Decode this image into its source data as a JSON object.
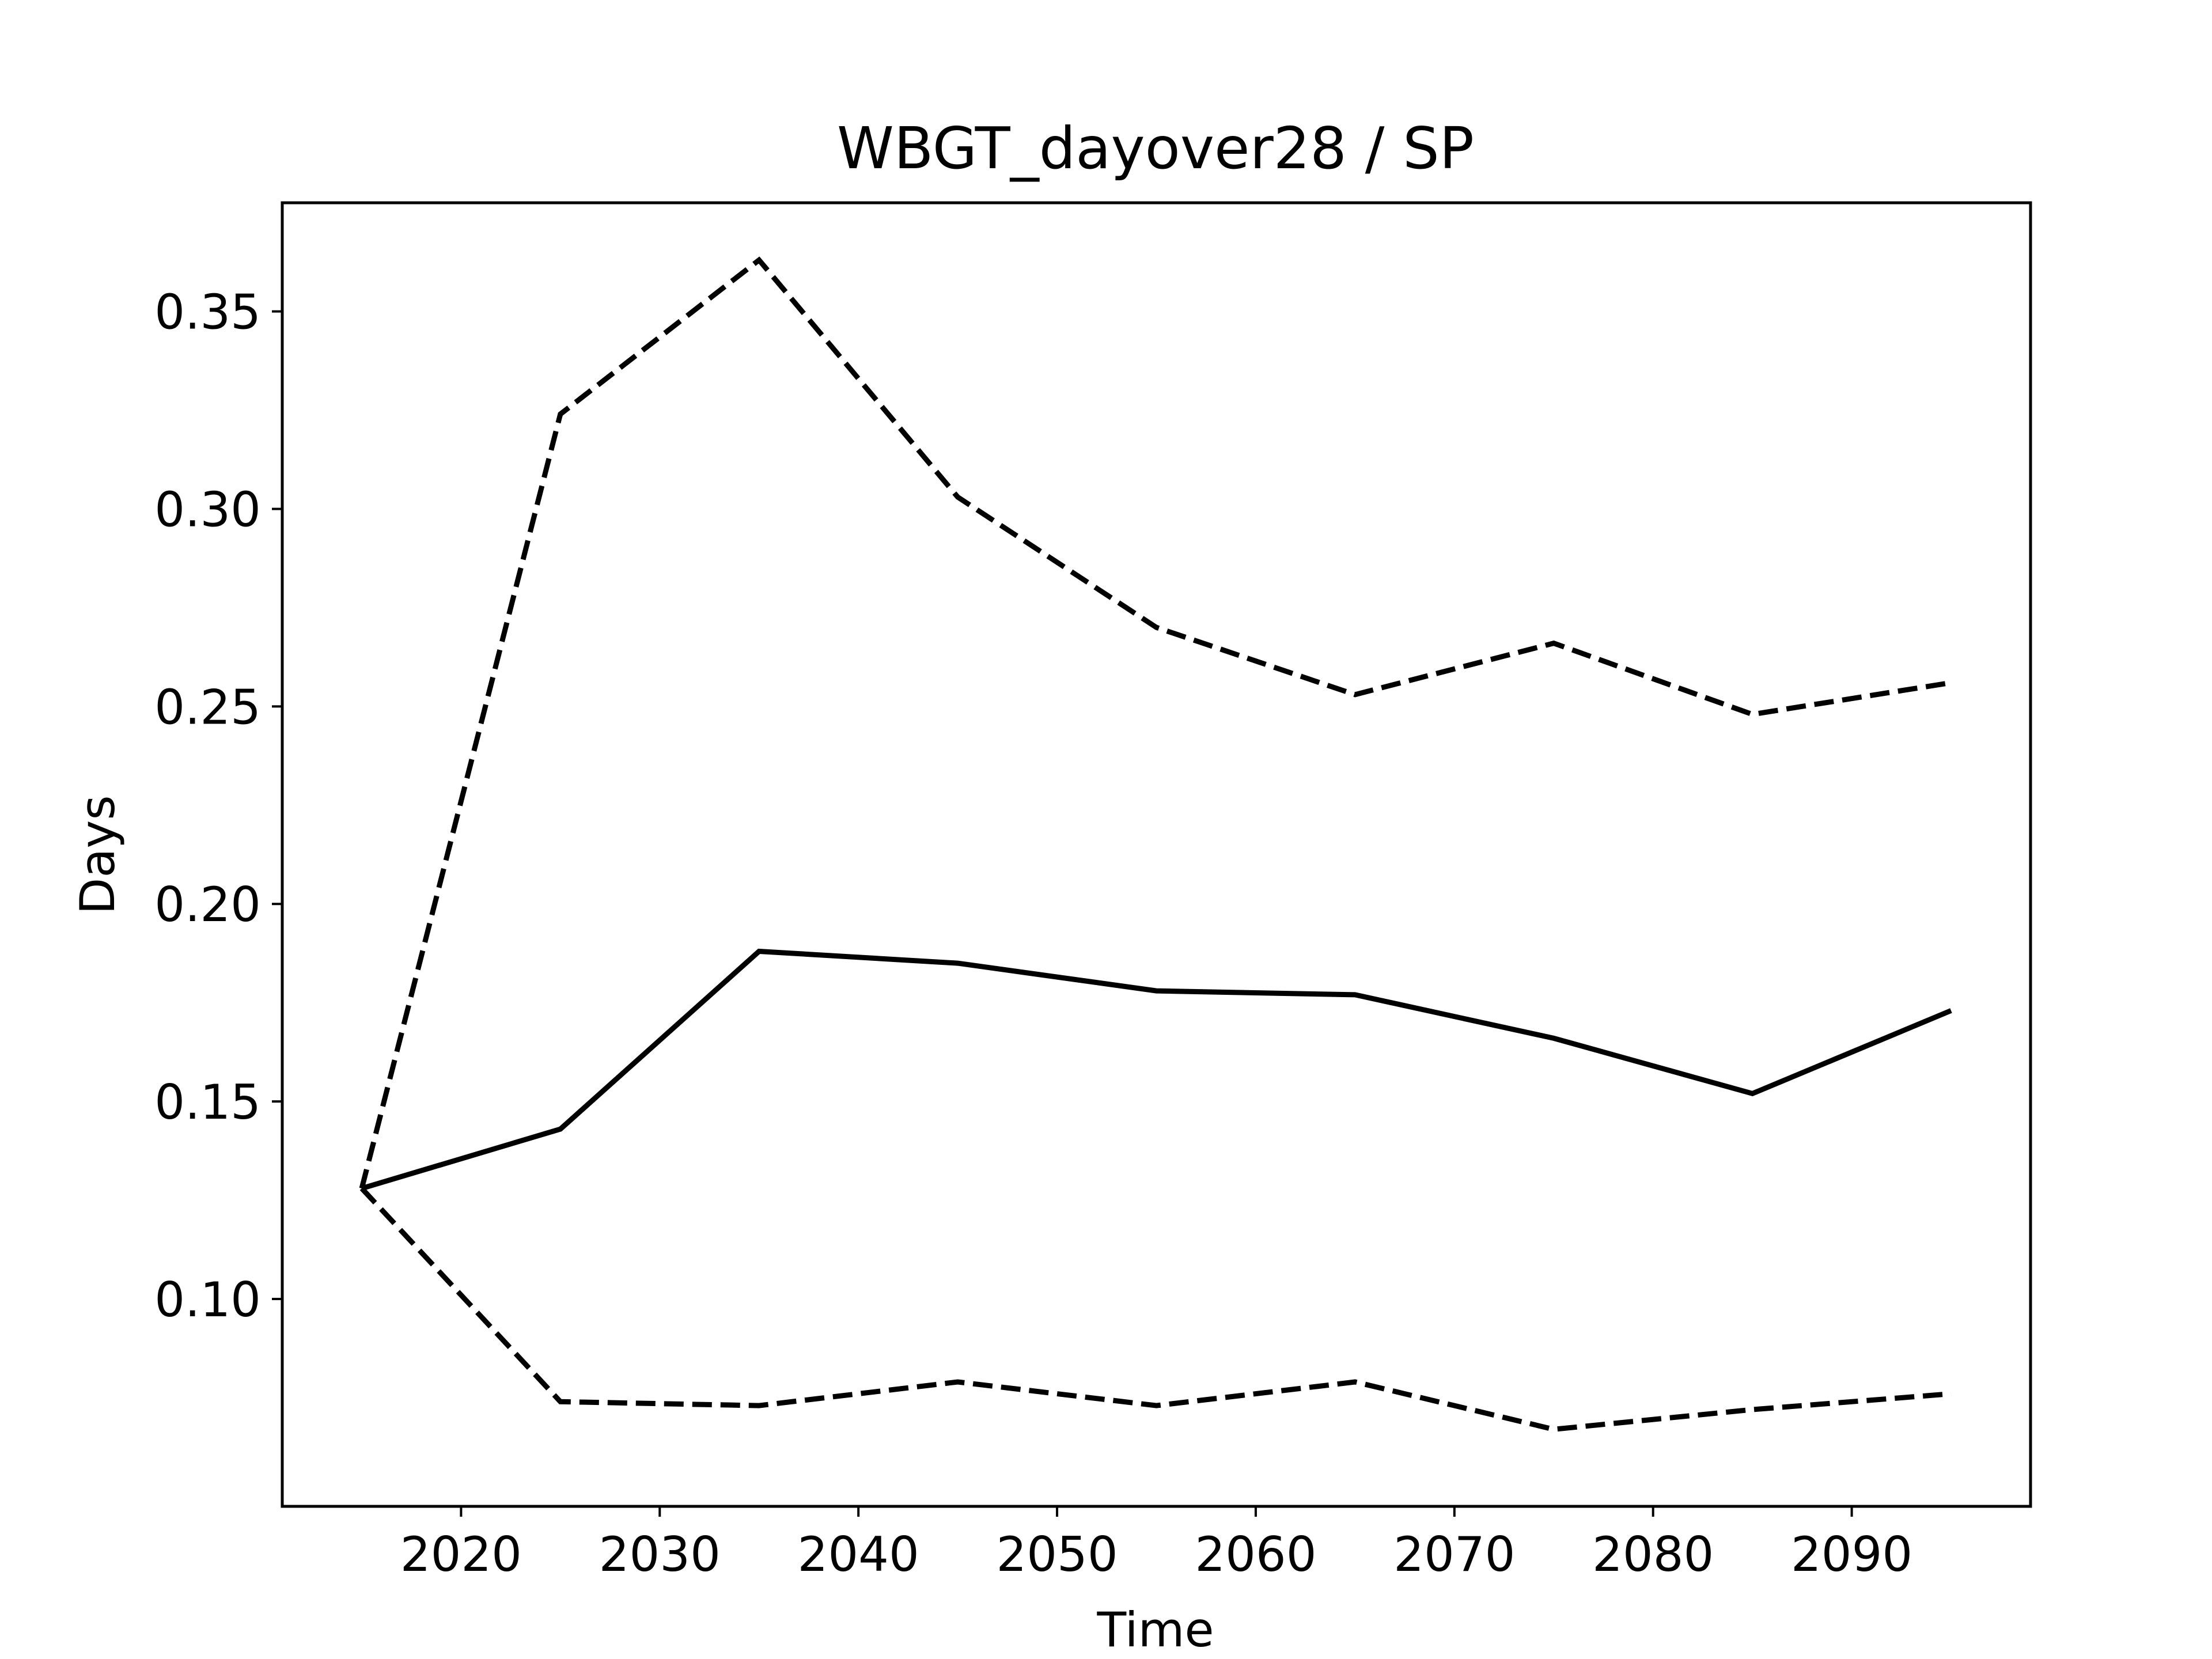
{
  "chart_data": {
    "type": "line",
    "title": "WBGT_dayover28 / SP",
    "xlabel": "Time",
    "ylabel": "Days",
    "xlim": [
      2011,
      2099
    ],
    "ylim": [
      0.0475,
      0.3775
    ],
    "xticks": [
      2020,
      2030,
      2040,
      2050,
      2060,
      2070,
      2080,
      2090
    ],
    "yticks": [
      0.1,
      0.15,
      0.2,
      0.25,
      0.3,
      0.35
    ],
    "ytick_labels": [
      "0.10",
      "0.15",
      "0.20",
      "0.25",
      "0.30",
      "0.35"
    ],
    "grid": false,
    "x": [
      2015,
      2025,
      2035,
      2045,
      2055,
      2065,
      2075,
      2085,
      2095
    ],
    "series": [
      {
        "style": "solid",
        "color": "#000000",
        "values": [
          0.128,
          0.143,
          0.188,
          0.185,
          0.178,
          0.177,
          0.166,
          0.152,
          0.173
        ]
      },
      {
        "style": "dashed",
        "color": "#000000",
        "values": [
          0.128,
          0.324,
          0.363,
          0.303,
          0.27,
          0.253,
          0.266,
          0.248,
          0.256
        ]
      },
      {
        "style": "dashed",
        "color": "#000000",
        "values": [
          0.128,
          0.074,
          0.073,
          0.079,
          0.073,
          0.079,
          0.067,
          0.072,
          0.076
        ]
      }
    ]
  }
}
